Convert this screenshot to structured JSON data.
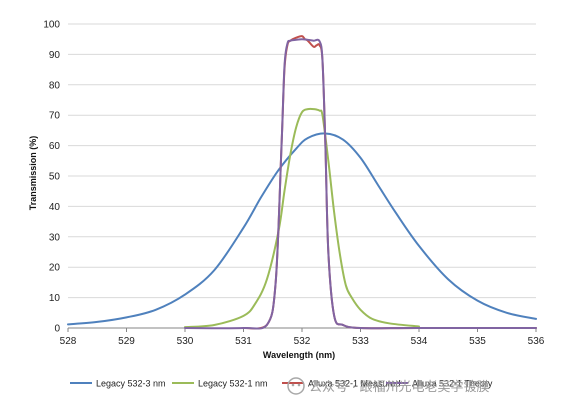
{
  "chart_data": {
    "type": "line",
    "title": "",
    "xlabel": "Wavelength (nm)",
    "ylabel": "Transmission (%)",
    "xlim": [
      528,
      536
    ],
    "ylim": [
      0,
      100
    ],
    "xticks": [
      528,
      529,
      530,
      531,
      532,
      533,
      534,
      535,
      536
    ],
    "yticks": [
      0,
      10,
      20,
      30,
      40,
      50,
      60,
      70,
      80,
      90,
      100
    ],
    "grid": "horizontal",
    "legend_position": "bottom",
    "series": [
      {
        "name": "Legacy 532-3 nm",
        "color": "#4f81bd",
        "x": [
          528,
          528.5,
          529,
          529.5,
          530,
          530.5,
          531,
          531.3,
          531.6,
          531.9,
          532.1,
          532.4,
          532.7,
          533,
          533.3,
          533.6,
          534,
          534.5,
          535,
          535.5,
          536
        ],
        "y": [
          1.2,
          2,
          3.5,
          6,
          11,
          19,
          33,
          43,
          52,
          59,
          62.5,
          64,
          62,
          56,
          47,
          38,
          27,
          16,
          9,
          5,
          3
        ]
      },
      {
        "name": "Legacy 532-1 nm",
        "color": "#9bbb59",
        "x": [
          530,
          530.5,
          531,
          531.2,
          531.4,
          531.6,
          531.7,
          531.8,
          531.9,
          532,
          532.1,
          532.2,
          532.3,
          532.35,
          532.45,
          532.55,
          532.65,
          532.75,
          532.85,
          533,
          533.2,
          533.5,
          534
        ],
        "y": [
          0.3,
          1,
          4,
          8,
          16,
          32,
          45,
          57,
          66,
          71,
          72,
          72,
          71.5,
          70,
          55,
          38,
          24,
          14,
          10,
          6,
          3,
          1.5,
          0.5
        ]
      },
      {
        "name": "Alluxa 532-1 Measured",
        "color": "#c0504d",
        "x": [
          531,
          531.4,
          531.55,
          531.65,
          531.7,
          531.75,
          531.8,
          531.9,
          532,
          532.05,
          532.1,
          532.2,
          532.25,
          532.3,
          532.35,
          532.4,
          532.45,
          532.55,
          532.7,
          533,
          534,
          536
        ],
        "y": [
          0,
          1,
          15,
          60,
          85,
          93,
          94.5,
          95.5,
          96,
          95,
          94.5,
          92.5,
          93,
          93,
          88,
          60,
          25,
          4,
          1,
          0,
          0,
          0
        ]
      },
      {
        "name": "Alluxa 532-1 Theory",
        "color": "#8064a2",
        "x": [
          530,
          531,
          531.4,
          531.55,
          531.65,
          531.7,
          531.75,
          531.8,
          531.9,
          532,
          532.1,
          532.2,
          532.3,
          532.35,
          532.4,
          532.45,
          532.55,
          532.7,
          533,
          534,
          536
        ],
        "y": [
          0,
          0,
          1,
          15,
          60,
          86,
          93.5,
          94.5,
          94.8,
          95,
          94.8,
          94.5,
          94.3,
          88,
          60,
          25,
          4,
          1,
          0,
          0,
          0
        ]
      }
    ]
  },
  "watermark": {
    "text": "公众号 · 跟福州光电老吴学镀膜"
  }
}
